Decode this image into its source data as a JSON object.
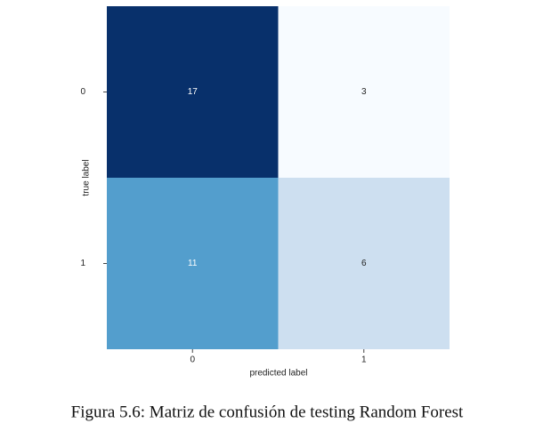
{
  "chart_data": {
    "type": "heatmap",
    "x_categories": [
      "0",
      "1"
    ],
    "y_categories": [
      "0",
      "1"
    ],
    "values": [
      [
        17,
        3
      ],
      [
        11,
        6
      ]
    ],
    "colors": [
      [
        "#08306b",
        "#f7fbff"
      ],
      [
        "#539ecd",
        "#cddff0"
      ]
    ],
    "xlabel": "predicted label",
    "ylabel": "true label",
    "caption": "Figura 5.6: Matriz de confusión de testing Random Forest"
  }
}
